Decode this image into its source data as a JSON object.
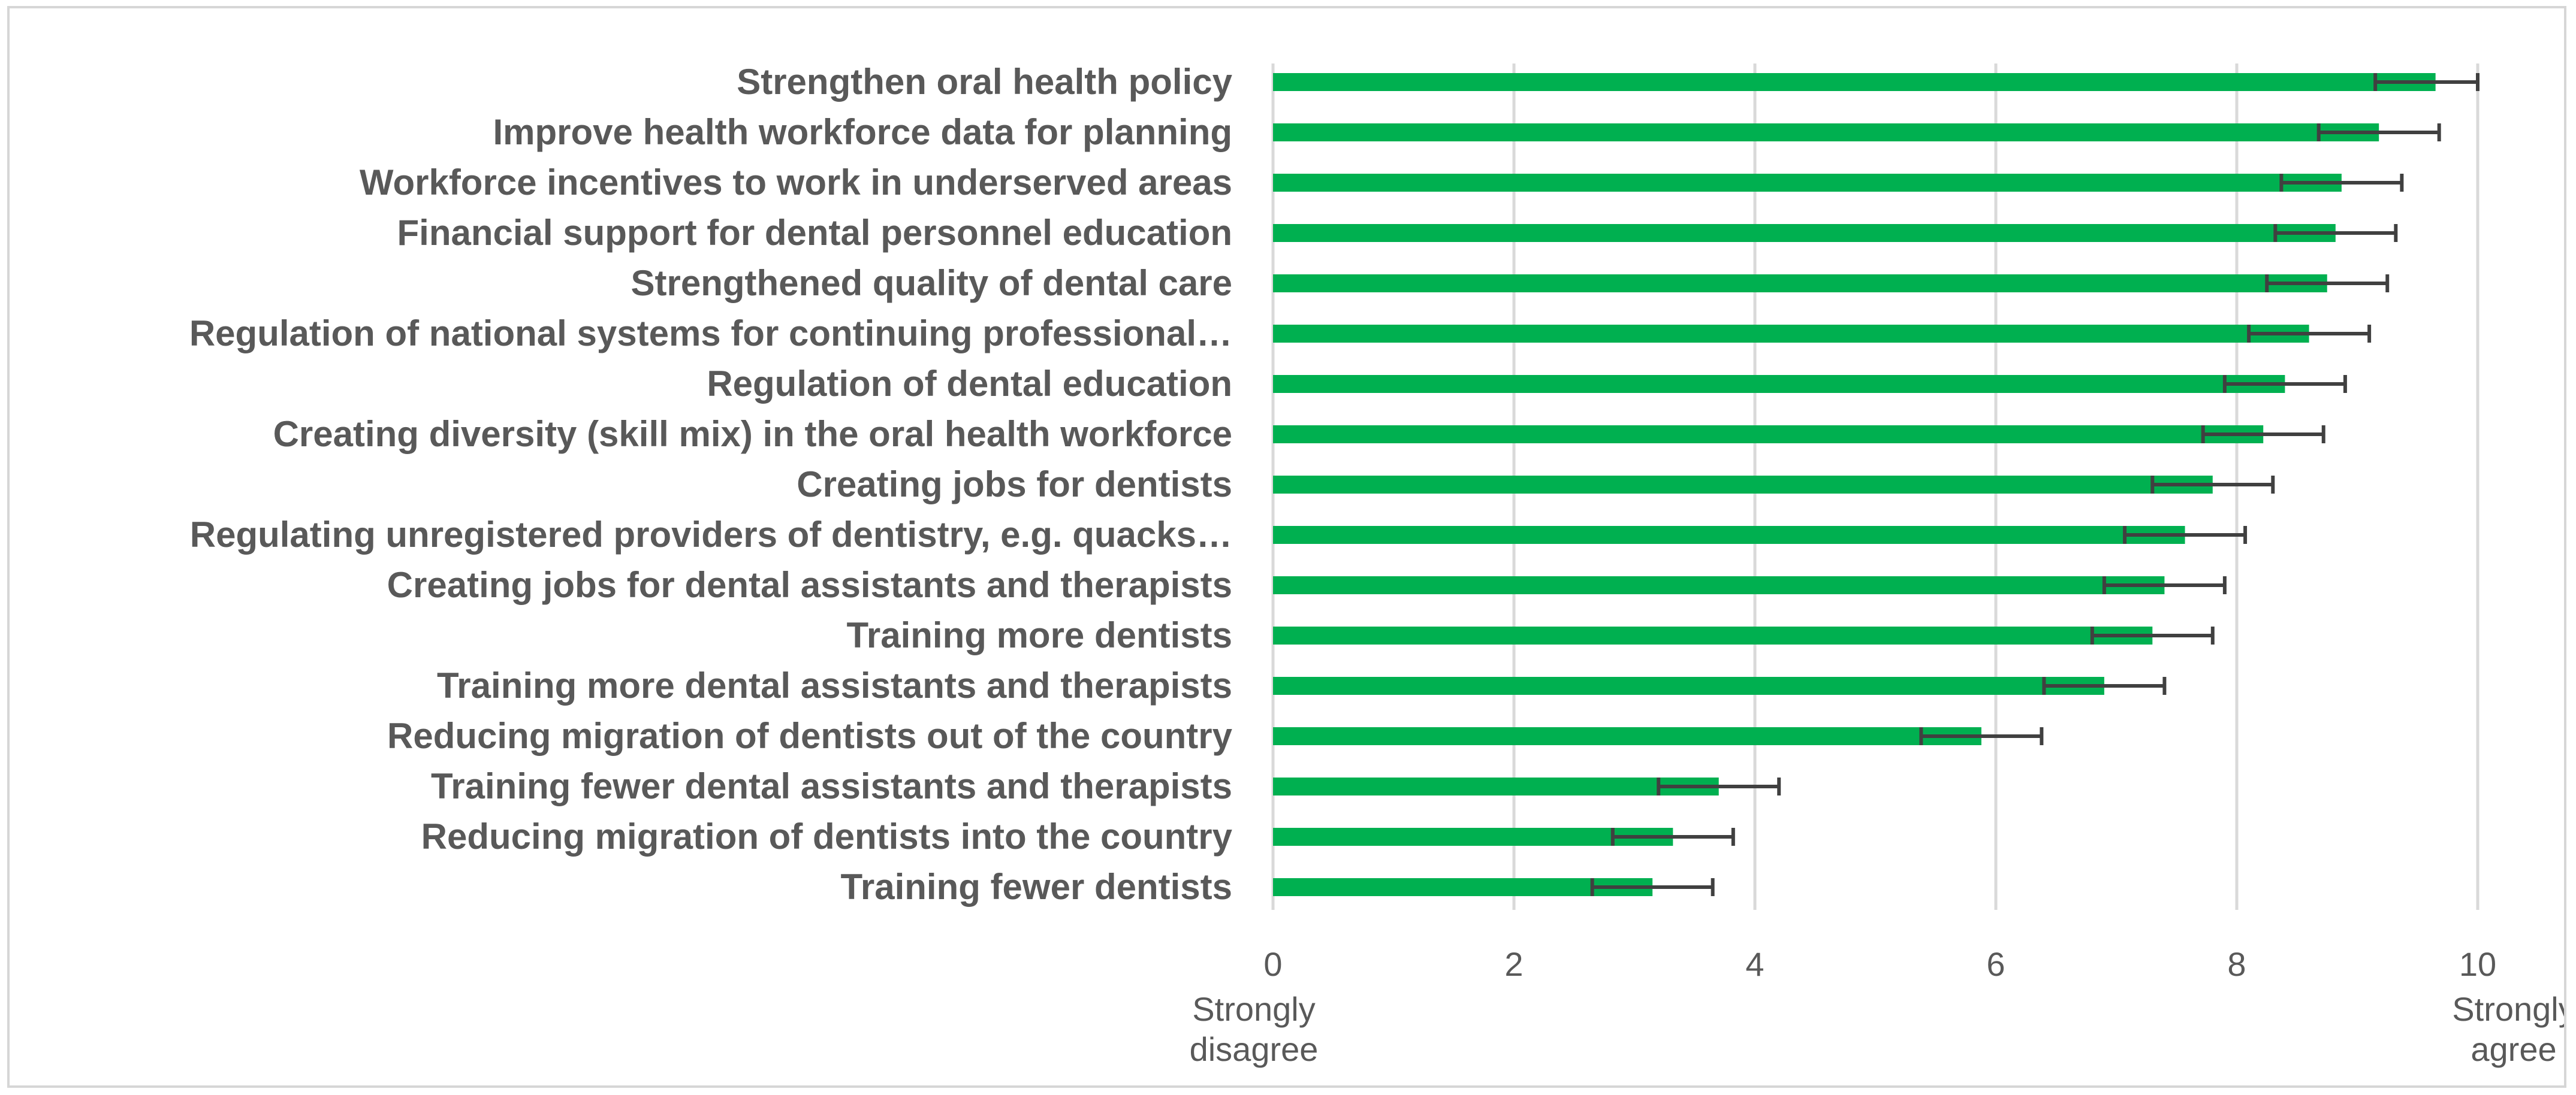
{
  "chart_data": {
    "type": "bar",
    "orientation": "horizontal",
    "title": "",
    "xlabel": "",
    "ylabel": "",
    "xlim": [
      0,
      10
    ],
    "xticks": [
      0,
      2,
      4,
      6,
      8,
      10
    ],
    "grid": "vertical",
    "legend": "none",
    "bar_color": "#00b050",
    "error_bar_color": "#404040",
    "gridline_color": "#d9d9d9",
    "axis_anchor_labels": {
      "min": "Strongly disagree",
      "max": "Strongly agree"
    },
    "categories": [
      "Strengthen oral health policy",
      "Improve health workforce data for planning",
      "Workforce incentives to work in underserved areas",
      "Financial support for dental personnel education",
      "Strengthened quality of dental care",
      "Regulation of national systems for continuing professional…",
      "Regulation of dental education",
      "Creating diversity (skill mix) in the oral health workforce",
      "Creating jobs for dentists",
      "Regulating unregistered providers of dentistry, e.g. quacks…",
      "Creating jobs for dental assistants and therapists",
      "Training more dentists",
      "Training more dental assistants and therapists",
      "Reducing migration of dentists out of the country",
      "Training fewer dental assistants and therapists",
      "Reducing migration of dentists into the country",
      "Training fewer dentists"
    ],
    "values": [
      9.65,
      9.18,
      8.87,
      8.82,
      8.75,
      8.6,
      8.4,
      8.22,
      7.8,
      7.57,
      7.4,
      7.3,
      6.9,
      5.88,
      3.7,
      3.32,
      3.15
    ],
    "error": [
      0.5,
      0.5,
      0.5,
      0.5,
      0.5,
      0.5,
      0.5,
      0.5,
      0.5,
      0.5,
      0.5,
      0.5,
      0.5,
      0.5,
      0.5,
      0.5,
      0.5
    ]
  }
}
